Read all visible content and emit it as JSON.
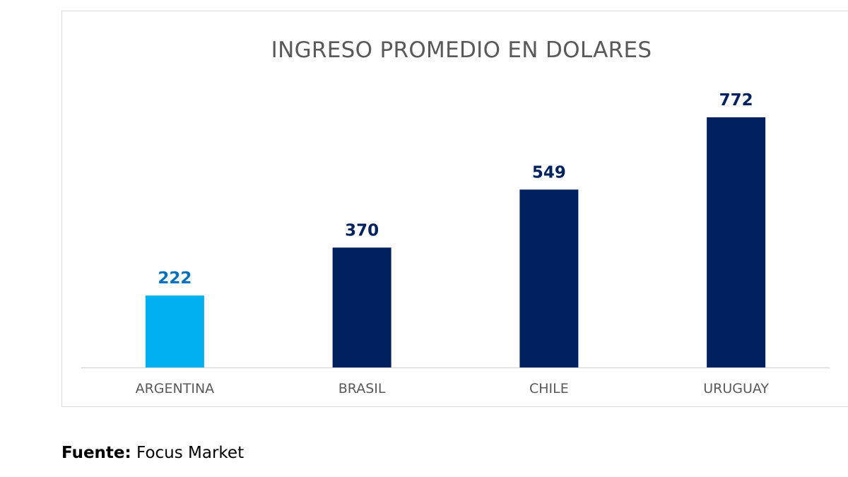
{
  "chart_data": {
    "type": "bar",
    "title": "INGRESO PROMEDIO EN DOLARES",
    "categories": [
      "ARGENTINA",
      "BRASIL",
      "CHILE",
      "URUGUAY"
    ],
    "values": [
      222,
      370,
      549,
      772
    ],
    "data_labels": [
      "222",
      "370",
      "549",
      "772"
    ],
    "bar_colors": [
      "#00b0f0",
      "#002060",
      "#002060",
      "#002060"
    ],
    "label_colors": [
      "#0070c0",
      "#002060",
      "#002060",
      "#002060"
    ],
    "ylim": [
      0,
      900
    ],
    "grid": false,
    "legend": "none"
  },
  "colors": {
    "axis": "#d9d9d9",
    "title": "#595959",
    "tick_text": "#595959"
  },
  "source": {
    "label": "Fuente:",
    "value": "Focus Market"
  }
}
